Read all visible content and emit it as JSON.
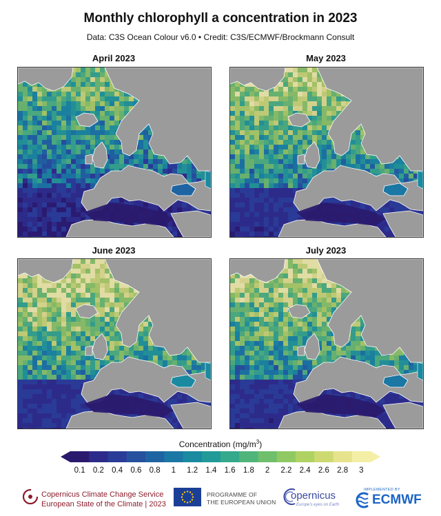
{
  "title": "Monthly chlorophyll a concentration in 2023",
  "subtitle": "Data: C3S Ocean Colour v6.0 • Credit: C3S/ECMWF/Brockmann Consult",
  "panels": [
    {
      "label": "April 2023",
      "intensity": 0.25
    },
    {
      "label": "May 2023",
      "intensity": 0.55
    },
    {
      "label": "June 2023",
      "intensity": 0.75
    },
    {
      "label": "July 2023",
      "intensity": 0.6
    }
  ],
  "colorbar": {
    "title": "Concentration (mg/m",
    "title_sup": "3",
    "title_close": ")",
    "ticks": [
      "0.1",
      "0.2",
      "0.4",
      "0.6",
      "0.8",
      "1",
      "1.2",
      "1.4",
      "1.6",
      "1.8",
      "2",
      "2.2",
      "2.4",
      "2.6",
      "2.8",
      "3"
    ],
    "colors": [
      "#2a1a6e",
      "#2d2b8a",
      "#2a3c98",
      "#26519f",
      "#1f64a2",
      "#1b77a3",
      "#198aa0",
      "#219a98",
      "#35a98b",
      "#4fb57b",
      "#6fbf6c",
      "#90c963",
      "#b0d262",
      "#cdda72",
      "#e6e38c",
      "#f4efa6"
    ]
  },
  "legend_colors": {
    "land": "#9b9b9b",
    "coast": "#ffffff"
  },
  "footer": {
    "c3s_line1": "Copernicus Climate Change Service",
    "c3s_line2": "European State of the Climate | 2023",
    "eu_line1": "PROGRAMME OF",
    "eu_line2": "THE EUROPEAN UNION",
    "copernicus": "opernicus",
    "copernicus_sub": "Europe's eyes on Earth",
    "ecmwf_small": "IMPLEMENTED BY",
    "ecmwf": "ECMWF"
  }
}
